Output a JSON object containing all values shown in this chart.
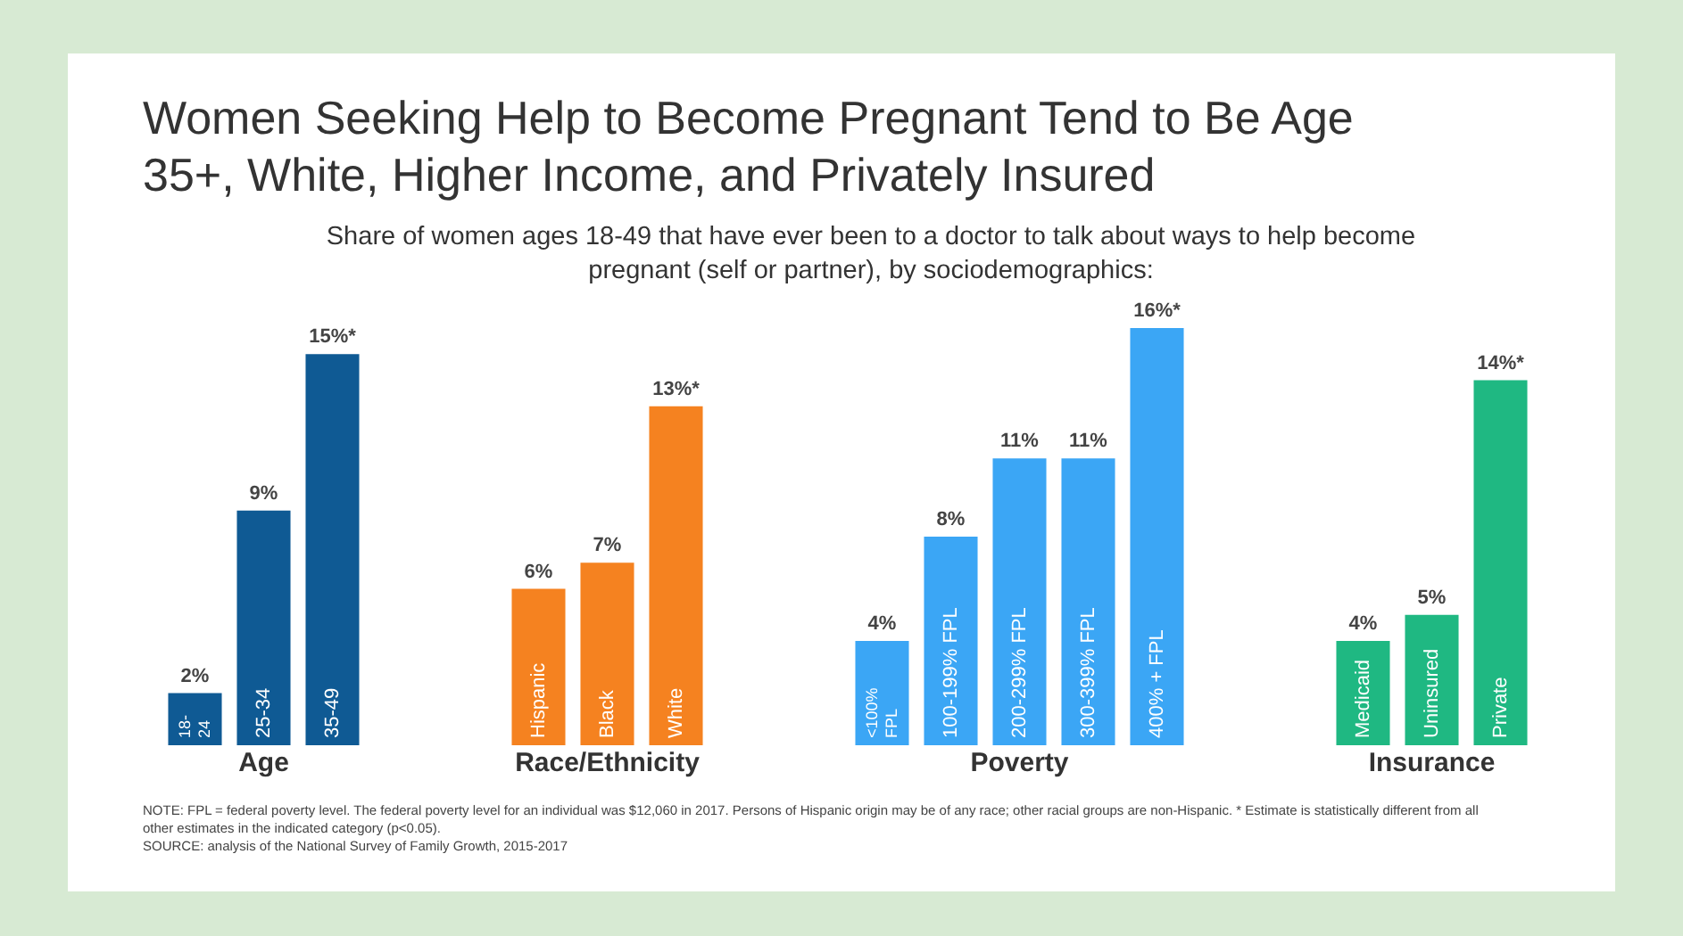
{
  "chart_data": {
    "type": "bar",
    "title": "Women Seeking Help to Become Pregnant Tend to Be Age 35+, White, Higher Income, and Privately Insured",
    "subtitle": "Share of women ages 18-49 that have ever been to a doctor to talk about ways to help become pregnant (self or partner), by sociodemographics:",
    "categories": [
      "18-24",
      "25-34",
      "35-49",
      null,
      null,
      "Hispanic",
      "Black",
      "White",
      null,
      null,
      "<100% FPL",
      "100-199% FPL",
      "200-299% FPL",
      "300-399% FPL",
      "400% + FPL",
      null,
      null,
      "Medicaid",
      "Uninsured",
      "Private"
    ],
    "values": [
      2,
      9,
      15,
      null,
      null,
      6,
      7,
      13,
      null,
      null,
      4,
      8,
      11,
      11,
      16,
      null,
      null,
      4,
      5,
      14
    ],
    "value_labels": [
      "2%",
      "9%",
      "15%*",
      null,
      null,
      "6%",
      "7%",
      "13%*",
      null,
      null,
      "4%",
      "8%",
      "11%",
      "11%",
      "16%*",
      null,
      null,
      "4%",
      "5%",
      "14%*"
    ],
    "colors": [
      "#0f5a94",
      "#0f5a94",
      "#0f5a94",
      null,
      null,
      "#f58220",
      "#f58220",
      "#f58220",
      null,
      null,
      "#3ba6f5",
      "#3ba6f5",
      "#3ba6f5",
      "#3ba6f5",
      "#3ba6f5",
      null,
      null,
      "#1fb882",
      "#1fb882",
      "#1fb882"
    ],
    "annotations": [
      "Age",
      "Race/Ethnicity",
      "Poverty",
      "Insurance",
      "NOTE: FPL = federal poverty level. The federal poverty level for an individual was $12,060 in 2017. Persons of Hispanic origin may be of any race; other racial groups are non-Hispanic. * Estimate is statistically different from all other estimates in the indicated category (p<0.05).",
      "SOURCE: analysis of the National Survey of Family Growth, 2015-2017"
    ],
    "legend": false
  }
}
